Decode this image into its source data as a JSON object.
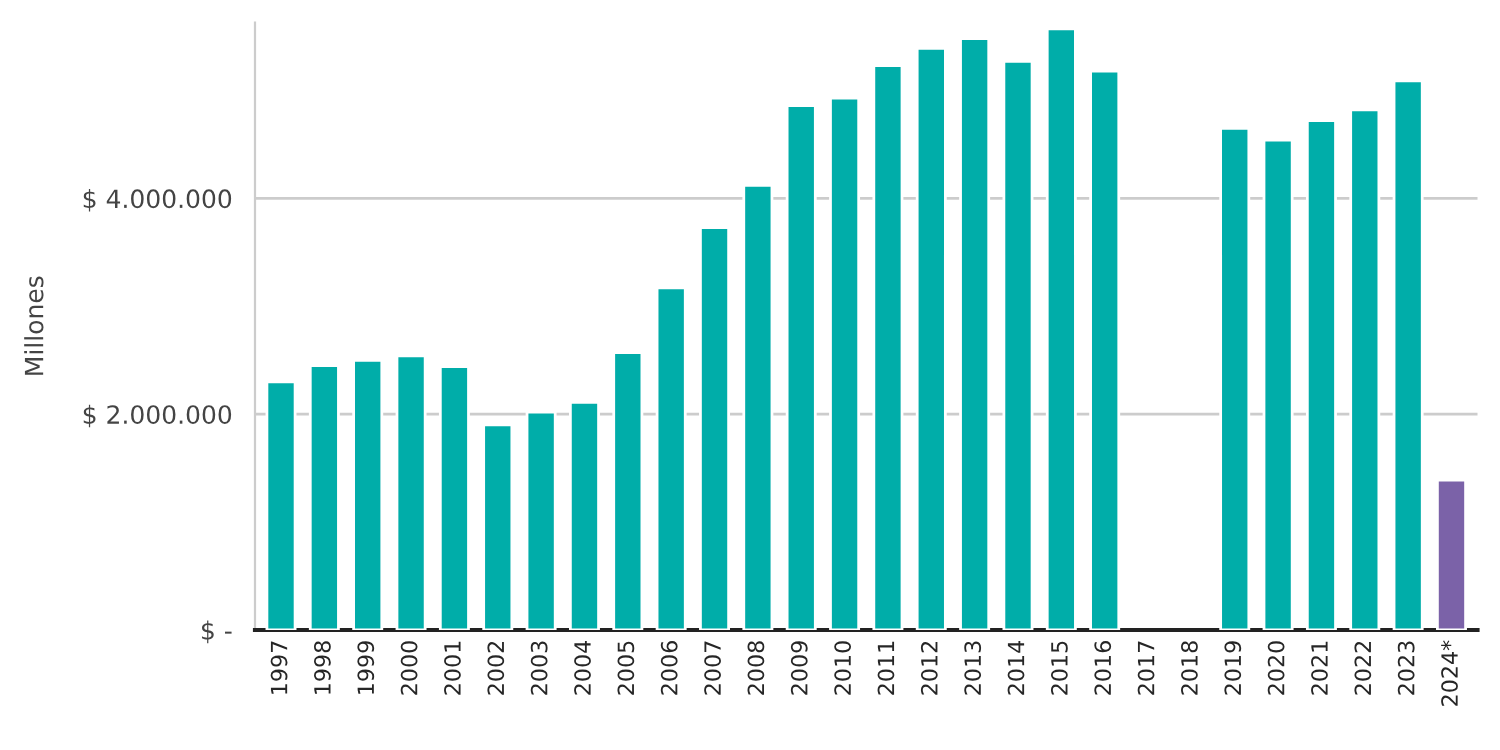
{
  "chart_data": {
    "type": "bar",
    "ylabel": "Millones",
    "categories": [
      "1997",
      "1998",
      "1999",
      "2000",
      "2001",
      "2002",
      "2003",
      "2004",
      "2005",
      "2006",
      "2007",
      "2008",
      "2009",
      "2010",
      "2011",
      "2012",
      "2013",
      "2014",
      "2015",
      "2016",
      "2017",
      "2018",
      "2019",
      "2020",
      "2021",
      "2022",
      "2023",
      "2024*"
    ],
    "values": [
      2300000,
      2450000,
      2500000,
      2540000,
      2440000,
      1900000,
      2020000,
      2110000,
      2570000,
      3170000,
      3730000,
      4120000,
      4860000,
      4930000,
      5230000,
      5390000,
      5480000,
      5270000,
      5570000,
      5180000,
      null,
      null,
      4650000,
      4540000,
      4720000,
      4820000,
      5090000,
      1390000
    ],
    "colors": [
      "#00ada9",
      "#00ada9",
      "#00ada9",
      "#00ada9",
      "#00ada9",
      "#00ada9",
      "#00ada9",
      "#00ada9",
      "#00ada9",
      "#00ada9",
      "#00ada9",
      "#00ada9",
      "#00ada9",
      "#00ada9",
      "#00ada9",
      "#00ada9",
      "#00ada9",
      "#00ada9",
      "#00ada9",
      "#00ada9",
      "#00ada9",
      "#00ada9",
      "#00ada9",
      "#00ada9",
      "#00ada9",
      "#00ada9",
      "#00ada9",
      "#7b62a8"
    ],
    "ylim": [
      0,
      5630000
    ],
    "yticks": [
      {
        "value": 0,
        "label": "$ -"
      },
      {
        "value": 2000000,
        "label": "$ 2.000.000"
      },
      {
        "value": 4000000,
        "label": "$ 4.000.000"
      }
    ],
    "grid": "y"
  }
}
